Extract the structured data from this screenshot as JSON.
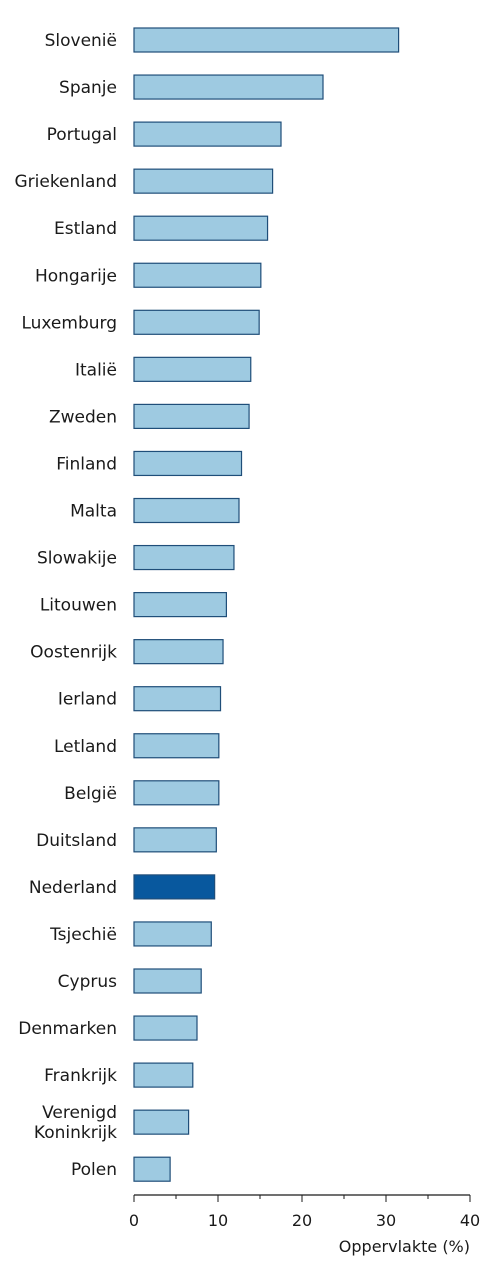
{
  "chart_data": {
    "type": "bar",
    "orientation": "horizontal",
    "categories": [
      "Slovenië",
      "Spanje",
      "Portugal",
      "Griekenland",
      "Estland",
      "Hongarije",
      "Luxemburg",
      "Italië",
      "Zweden",
      "Finland",
      "Malta",
      "Slowakije",
      "Litouwen",
      "Oostenrijk",
      "Ierland",
      "Letland",
      "België",
      "Duitsland",
      "Nederland",
      "Tsjechië",
      "Cyprus",
      "Denmarken",
      "Frankrijk",
      "Verenigd Koninkrijk",
      "Polen"
    ],
    "values": [
      31.5,
      22.5,
      17.5,
      16.5,
      15.9,
      15.1,
      14.9,
      13.9,
      13.7,
      12.8,
      12.5,
      11.9,
      11.0,
      10.6,
      10.3,
      10.1,
      10.1,
      9.8,
      9.6,
      9.2,
      8.0,
      7.5,
      7.0,
      6.5,
      4.3
    ],
    "highlight": "Nederland",
    "xlabel": "Oppervlakte (%)",
    "xlim": [
      0,
      40
    ],
    "xticks": [
      "0",
      "10",
      "20",
      "30",
      "40"
    ],
    "grid": false,
    "colors": {
      "bar": "#9ecae1",
      "bar_highlight": "#08589e",
      "bar_stroke": "#1f4e79",
      "axis": "#1a1a1a"
    }
  }
}
